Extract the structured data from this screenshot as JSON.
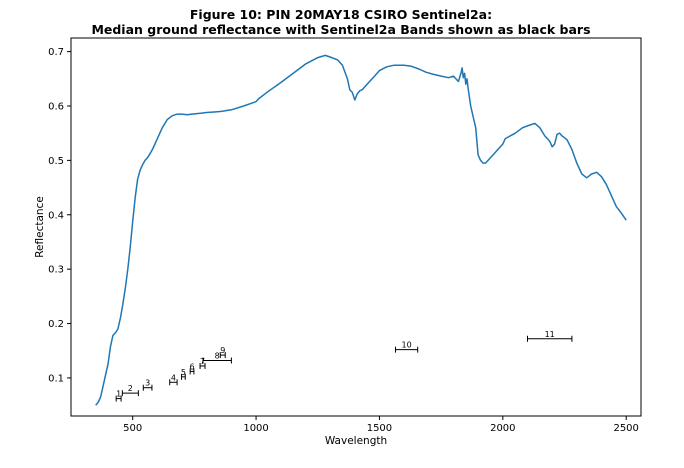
{
  "chart_data": {
    "type": "line",
    "title_line1": "Figure 10: PIN 20MAY18 CSIRO Sentinel2a:",
    "title_line2": "Median ground reflectance with Sentinel2a Bands shown as black bars",
    "xlabel": "Wavelength",
    "ylabel": "Reflectance",
    "xlim": [
      250,
      2560
    ],
    "ylim": [
      0.03,
      0.725
    ],
    "xticks": [
      500,
      1000,
      1500,
      2000,
      2500
    ],
    "yticks": [
      0.1,
      0.2,
      0.3,
      0.4,
      0.5,
      0.6,
      0.7
    ],
    "grid": false,
    "line_color": "#1f77b4",
    "bar_color": "#000000",
    "series": [
      {
        "x": [
          350,
          360,
          370,
          380,
          390,
          400,
          410,
          420,
          430,
          440,
          450,
          460,
          470,
          480,
          490,
          500,
          510,
          520,
          530,
          540,
          550,
          560,
          570,
          580,
          590,
          600,
          620,
          640,
          660,
          680,
          700,
          720,
          740,
          760,
          780,
          800,
          830,
          860,
          900,
          950,
          1000,
          1010,
          1050,
          1100,
          1150,
          1200,
          1250,
          1280,
          1300,
          1330,
          1350,
          1370,
          1380,
          1390,
          1400,
          1410,
          1420,
          1430,
          1450,
          1480,
          1500,
          1530,
          1560,
          1600,
          1630,
          1660,
          1690,
          1720,
          1750,
          1780,
          1800,
          1810,
          1820,
          1830,
          1835,
          1840,
          1845,
          1850,
          1855,
          1860,
          1870,
          1880,
          1890,
          1900,
          1910,
          1920,
          1930,
          1950,
          1980,
          2000,
          2010,
          2050,
          2080,
          2110,
          2130,
          2150,
          2170,
          2190,
          2200,
          2210,
          2220,
          2230,
          2240,
          2260,
          2280,
          2300,
          2320,
          2340,
          2360,
          2380,
          2400,
          2420,
          2440,
          2460,
          2480,
          2500
        ],
        "y": [
          0.05,
          0.055,
          0.065,
          0.085,
          0.105,
          0.125,
          0.158,
          0.178,
          0.183,
          0.19,
          0.21,
          0.235,
          0.265,
          0.3,
          0.34,
          0.388,
          0.432,
          0.465,
          0.482,
          0.492,
          0.5,
          0.505,
          0.512,
          0.52,
          0.53,
          0.54,
          0.56,
          0.575,
          0.582,
          0.585,
          0.585,
          0.584,
          0.585,
          0.586,
          0.587,
          0.588,
          0.589,
          0.59,
          0.593,
          0.6,
          0.608,
          0.613,
          0.627,
          0.643,
          0.66,
          0.677,
          0.689,
          0.693,
          0.69,
          0.685,
          0.675,
          0.65,
          0.63,
          0.625,
          0.611,
          0.622,
          0.628,
          0.63,
          0.64,
          0.655,
          0.665,
          0.672,
          0.675,
          0.675,
          0.673,
          0.668,
          0.662,
          0.658,
          0.655,
          0.652,
          0.655,
          0.65,
          0.645,
          0.66,
          0.67,
          0.652,
          0.66,
          0.64,
          0.65,
          0.63,
          0.6,
          0.58,
          0.56,
          0.51,
          0.5,
          0.495,
          0.495,
          0.505,
          0.52,
          0.53,
          0.54,
          0.55,
          0.56,
          0.565,
          0.568,
          0.56,
          0.545,
          0.535,
          0.525,
          0.53,
          0.548,
          0.55,
          0.545,
          0.538,
          0.52,
          0.495,
          0.475,
          0.468,
          0.475,
          0.478,
          0.47,
          0.455,
          0.435,
          0.415,
          0.403,
          0.39
        ]
      }
    ],
    "bands": [
      {
        "label": "1",
        "x0": 433,
        "x1": 453,
        "y": 0.062
      },
      {
        "label": "2",
        "x0": 458,
        "x1": 523,
        "y": 0.072
      },
      {
        "label": "3",
        "x0": 543,
        "x1": 578,
        "y": 0.082
      },
      {
        "label": "4",
        "x0": 650,
        "x1": 680,
        "y": 0.092
      },
      {
        "label": "5",
        "x0": 698,
        "x1": 713,
        "y": 0.102
      },
      {
        "label": "6",
        "x0": 733,
        "x1": 748,
        "y": 0.112
      },
      {
        "label": "7",
        "x0": 773,
        "x1": 793,
        "y": 0.122
      },
      {
        "label": "8",
        "x0": 785,
        "x1": 900,
        "y": 0.132
      },
      {
        "label": "9",
        "x0": 855,
        "x1": 875,
        "y": 0.142
      },
      {
        "label": "10",
        "x0": 1565,
        "x1": 1655,
        "y": 0.152
      },
      {
        "label": "11",
        "x0": 2100,
        "x1": 2280,
        "y": 0.172
      }
    ]
  }
}
